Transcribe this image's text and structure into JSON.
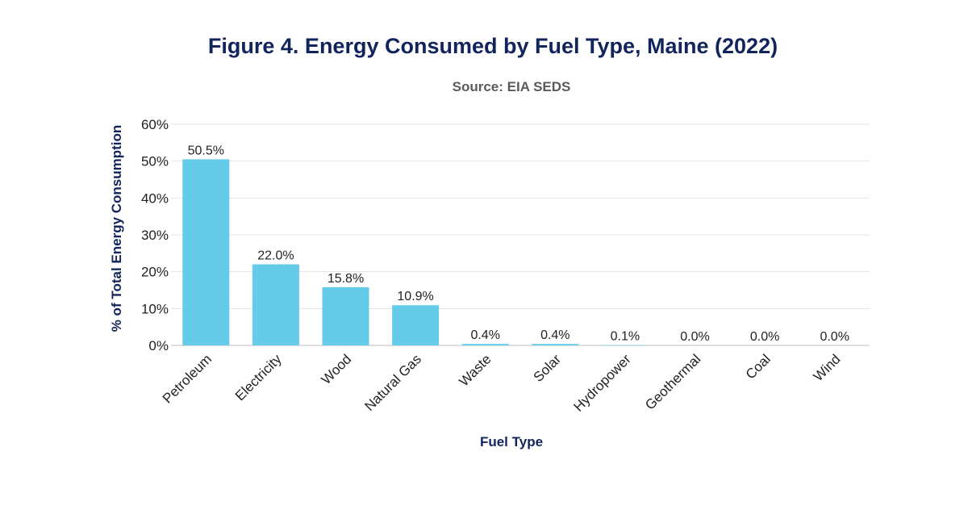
{
  "chart_data": {
    "type": "bar",
    "title": "Figure 4. Energy Consumed by Fuel Type, Maine (2022)",
    "subtitle": "Source: EIA SEDS",
    "xlabel": "Fuel Type",
    "ylabel": "% of Total Energy Consumption",
    "categories": [
      "Petroleum",
      "Electricity",
      "Wood",
      "Natural Gas",
      "Waste",
      "Solar",
      "Hydropower",
      "Geothermal",
      "Coal",
      "Wind"
    ],
    "values": [
      50.5,
      22.0,
      15.8,
      10.9,
      0.4,
      0.4,
      0.1,
      0.0,
      0.0,
      0.0
    ],
    "data_labels": [
      "50.5%",
      "22.0%",
      "15.8%",
      "10.9%",
      "0.4%",
      "0.4%",
      "0.1%",
      "0.0%",
      "0.0%",
      "0.0%"
    ],
    "yticks": [
      "0%",
      "10%",
      "20%",
      "30%",
      "40%",
      "50%",
      "60%"
    ],
    "ylim": [
      0,
      60
    ],
    "grid": true,
    "legend": "none",
    "bar_color": "#64cbe8",
    "title_color": "#12245c"
  }
}
